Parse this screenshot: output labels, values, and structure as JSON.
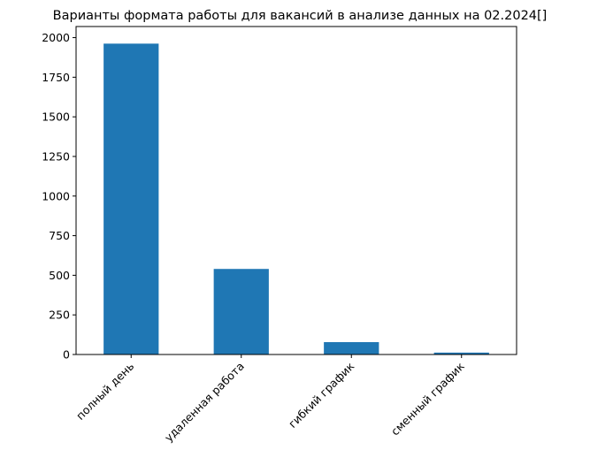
{
  "chart_data": {
    "type": "bar",
    "title": "Варианты формата работы для вакансий в анализе данных на  02.2024[]",
    "xlabel": "",
    "ylabel": "",
    "categories": [
      "полный день",
      "удаленная работа",
      "гибкий график",
      "сменный график"
    ],
    "values": [
      1962,
      540,
      78,
      12
    ],
    "ylim": [
      0,
      2070
    ],
    "yticks": [
      0,
      250,
      500,
      750,
      1000,
      1250,
      1500,
      1750,
      2000
    ],
    "xtick_rotation": 45,
    "grid": false,
    "legend": "none",
    "bar_color": "#1f77b4"
  }
}
